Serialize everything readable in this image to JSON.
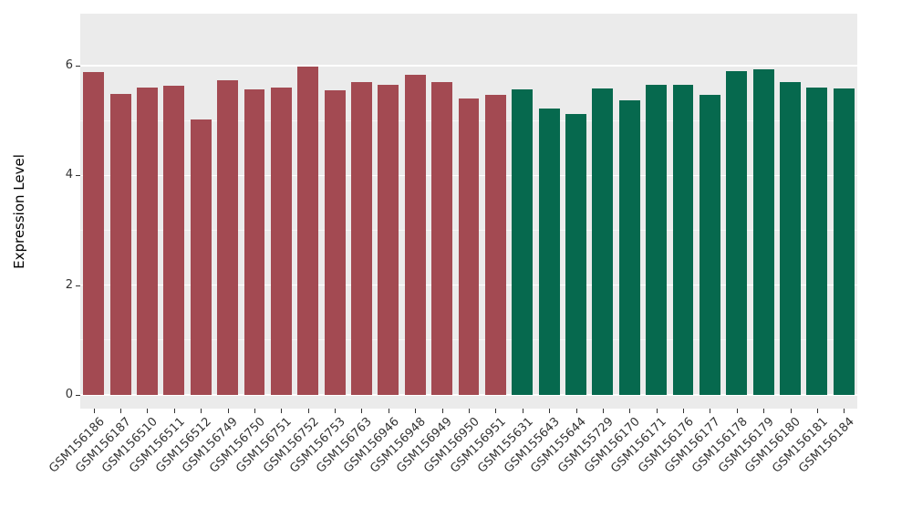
{
  "chart_data": {
    "type": "bar",
    "title": "",
    "xlabel": "",
    "ylabel": "Expression Level",
    "ylim": [
      -0.25,
      6.95
    ],
    "yticks": [
      0,
      2,
      4,
      6
    ],
    "yticks_minor": [
      1,
      3,
      5
    ],
    "grid": "on",
    "legend": "none",
    "panel_bg": "#EBEBEB",
    "grid_color": "#FFFFFF",
    "categories": [
      "GSM156186",
      "GSM156187",
      "GSM156510",
      "GSM156511",
      "GSM156512",
      "GSM156749",
      "GSM156750",
      "GSM156751",
      "GSM156752",
      "GSM156753",
      "GSM156763",
      "GSM156946",
      "GSM156948",
      "GSM156949",
      "GSM156950",
      "GSM156951",
      "GSM155631",
      "GSM155643",
      "GSM155644",
      "GSM155729",
      "GSM156170",
      "GSM156171",
      "GSM156176",
      "GSM156177",
      "GSM156178",
      "GSM156179",
      "GSM156180",
      "GSM156181",
      "GSM156184"
    ],
    "values": [
      5.88,
      5.48,
      5.6,
      5.63,
      5.02,
      5.73,
      5.57,
      5.6,
      5.98,
      5.55,
      5.7,
      5.65,
      5.83,
      5.71,
      5.4,
      5.47,
      5.57,
      5.22,
      5.12,
      5.58,
      5.37,
      5.65,
      5.65,
      5.47,
      5.9,
      5.93,
      5.7,
      5.6,
      5.58
    ],
    "groups": [
      "group1",
      "group1",
      "group1",
      "group1",
      "group1",
      "group1",
      "group1",
      "group1",
      "group1",
      "group1",
      "group1",
      "group1",
      "group1",
      "group1",
      "group1",
      "group1",
      "group2",
      "group2",
      "group2",
      "group2",
      "group2",
      "group2",
      "group2",
      "group2",
      "group2",
      "group2",
      "group2",
      "group2",
      "group2"
    ],
    "group_colors": {
      "group1": "#A34A52",
      "group2": "#06694E"
    }
  }
}
